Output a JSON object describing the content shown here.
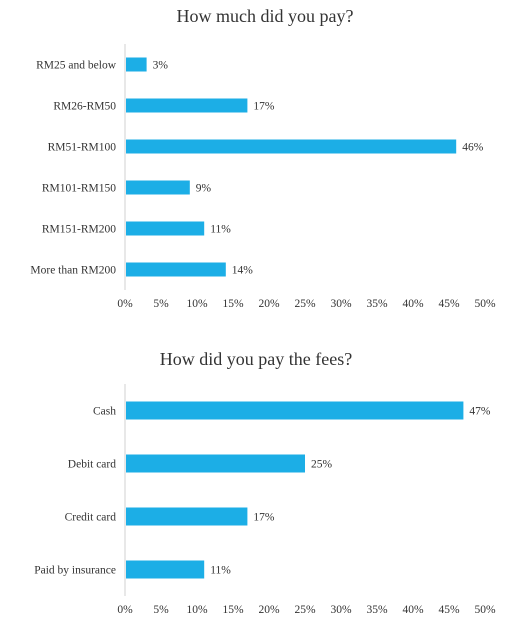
{
  "chart_data": [
    {
      "type": "bar",
      "orientation": "horizontal",
      "title": "How much did you pay?",
      "categories": [
        "RM25 and below",
        "RM26-RM50",
        "RM51-RM100",
        "RM101-RM150",
        "RM151-RM200",
        "More than RM200"
      ],
      "values": [
        3,
        17,
        46,
        9,
        11,
        14
      ],
      "data_labels": [
        "3%",
        "17%",
        "46%",
        "9%",
        "11%",
        "14%"
      ],
      "xlim": [
        0,
        50
      ],
      "xticks": [
        "0%",
        "5%",
        "10%",
        "15%",
        "20%",
        "25%",
        "30%",
        "35%",
        "40%",
        "45%",
        "50%"
      ],
      "grid": false,
      "bar_color": "#1caee6"
    },
    {
      "type": "bar",
      "orientation": "horizontal",
      "title": "How did you pay the fees?",
      "categories": [
        "Cash",
        "Debit card",
        "Credit card",
        "Paid by insurance"
      ],
      "values": [
        47,
        25,
        17,
        11
      ],
      "data_labels": [
        "47%",
        "25%",
        "17%",
        "11%"
      ],
      "xlim": [
        0,
        50
      ],
      "xticks": [
        "0%",
        "5%",
        "10%",
        "15%",
        "20%",
        "25%",
        "30%",
        "35%",
        "40%",
        "45%",
        "50%"
      ],
      "grid": false,
      "bar_color": "#1caee6"
    }
  ]
}
